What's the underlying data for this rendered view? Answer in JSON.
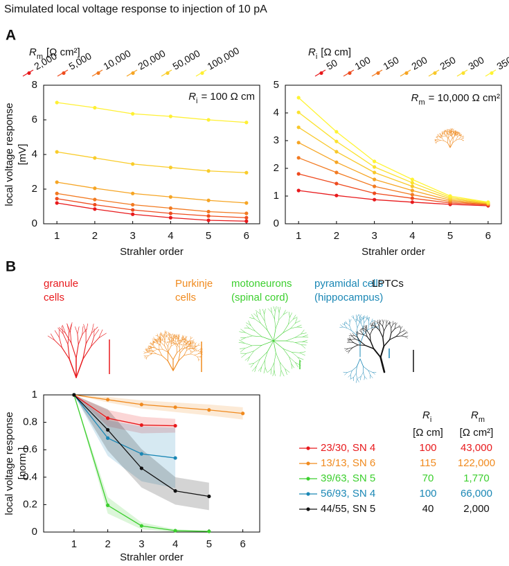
{
  "title": "Simulated local voltage response to injection of 10 pA",
  "panels": [
    "A",
    "B"
  ],
  "cell_types": [
    {
      "label": [
        "granule",
        "cells"
      ],
      "color": "#e8191c"
    },
    {
      "label": [
        "Purkinje",
        "cells"
      ],
      "color": "#f08a1e"
    },
    {
      "label": [
        "motoneurons",
        "(spinal cord)"
      ],
      "color": "#3ccf2e"
    },
    {
      "label": [
        "pyramidal cells",
        "(hippocampus)"
      ],
      "color": "#1a87b5"
    },
    {
      "label": [
        "LPTCs"
      ],
      "color": "#111111"
    }
  ],
  "chart_data": [
    {
      "type": "line",
      "x": [
        1,
        2,
        3,
        4,
        5,
        6
      ],
      "xlim": [
        0.65,
        6.35
      ],
      "xticks": [
        1,
        2,
        3,
        4,
        5,
        6
      ],
      "ylim": [
        0,
        8
      ],
      "yticks": [
        0,
        2,
        4,
        6,
        8
      ],
      "xlabel": "Strahler order",
      "ylabel": [
        "local voltage response",
        "[mV]"
      ],
      "legend_title": {
        "symbol": "R",
        "sub": "m",
        "unit": "[Ω cm²]"
      },
      "annotation": {
        "symbol": "R",
        "sub": "i",
        "text": "= 100 Ω cm"
      },
      "series": [
        {
          "name": "2,000",
          "color": "#e8191c",
          "values": [
            1.2,
            0.85,
            0.55,
            0.35,
            0.2,
            0.15
          ]
        },
        {
          "name": "5,000",
          "color": "#ee4c1e",
          "values": [
            1.45,
            1.1,
            0.8,
            0.6,
            0.45,
            0.35
          ]
        },
        {
          "name": "10,000",
          "color": "#f27a21",
          "values": [
            1.75,
            1.4,
            1.1,
            0.9,
            0.7,
            0.6
          ]
        },
        {
          "name": "20,000",
          "color": "#f6a524",
          "values": [
            2.4,
            2.05,
            1.75,
            1.55,
            1.35,
            1.2
          ]
        },
        {
          "name": "50,000",
          "color": "#f9cc2a",
          "values": [
            4.15,
            3.8,
            3.45,
            3.25,
            3.05,
            2.95
          ]
        },
        {
          "name": "100,000",
          "color": "#fff033",
          "values": [
            7.0,
            6.7,
            6.35,
            6.2,
            6.0,
            5.85
          ]
        }
      ]
    },
    {
      "type": "line",
      "x": [
        1,
        2,
        3,
        4,
        5,
        6
      ],
      "xlim": [
        0.65,
        6.35
      ],
      "xticks": [
        1,
        2,
        3,
        4,
        5,
        6
      ],
      "ylim": [
        0,
        5
      ],
      "yticks": [
        0,
        1,
        2,
        3,
        4,
        5
      ],
      "xlabel": "Strahler order",
      "legend_title": {
        "symbol": "R",
        "sub": "i",
        "unit": "[Ω cm]"
      },
      "annotation": {
        "symbol": "R",
        "sub": "m",
        "text": "= 10,000 Ω cm²"
      },
      "series": [
        {
          "name": "50",
          "color": "#e8191c",
          "values": [
            1.2,
            1.02,
            0.87,
            0.78,
            0.7,
            0.65
          ]
        },
        {
          "name": "100",
          "color": "#ee4a1e",
          "values": [
            1.8,
            1.45,
            1.1,
            0.92,
            0.75,
            0.68
          ]
        },
        {
          "name": "150",
          "color": "#f27a21",
          "values": [
            2.38,
            1.85,
            1.35,
            1.05,
            0.8,
            0.7
          ]
        },
        {
          "name": "200",
          "color": "#f6a524",
          "values": [
            2.93,
            2.22,
            1.6,
            1.2,
            0.85,
            0.72
          ]
        },
        {
          "name": "250",
          "color": "#f8c82a",
          "values": [
            3.48,
            2.6,
            1.85,
            1.35,
            0.9,
            0.74
          ]
        },
        {
          "name": "300",
          "color": "#fbe22f",
          "values": [
            4.02,
            2.97,
            2.05,
            1.48,
            0.95,
            0.76
          ]
        },
        {
          "name": "350",
          "color": "#fff433",
          "values": [
            4.55,
            3.32,
            2.25,
            1.6,
            1.0,
            0.78
          ]
        }
      ]
    },
    {
      "type": "line",
      "band": true,
      "x": [
        1,
        2,
        3,
        4,
        5,
        6
      ],
      "xlim": [
        0.1,
        6.5
      ],
      "xticks": [
        1,
        2,
        3,
        4,
        5,
        6
      ],
      "ylim": [
        0,
        1
      ],
      "yticks": [
        0,
        0.2,
        0.4,
        0.6,
        0.8,
        1
      ],
      "xlabel": "Strahler order",
      "ylabel": [
        "local voltage response",
        "[norm.]"
      ],
      "legend_columns": [
        {
          "symbol": "R",
          "sub": "i",
          "unit": "[Ω cm]"
        },
        {
          "symbol": "R",
          "sub": "m",
          "unit": "[Ω cm²]"
        }
      ],
      "series": [
        {
          "name": "23/30, SN 4",
          "color": "#e8191c",
          "values": [
            1,
            0.83,
            0.78,
            0.775,
            null,
            null
          ],
          "errors": [
            0,
            0.06,
            0.06,
            0.05,
            null,
            null
          ],
          "r_i": 100,
          "r_m": "43,000"
        },
        {
          "name": "13/13, SN 6",
          "color": "#f08a1e",
          "values": [
            1,
            0.965,
            0.93,
            0.91,
            0.89,
            0.865
          ],
          "errors": [
            0,
            0.02,
            0.03,
            0.035,
            0.04,
            0.045
          ],
          "r_i": 115,
          "r_m": "122,000"
        },
        {
          "name": "39/63, SN 5",
          "color": "#3ccf2e",
          "values": [
            1,
            0.195,
            0.045,
            0.01,
            0.005,
            null
          ],
          "errors": [
            0,
            0.06,
            0.025,
            0.01,
            0.005,
            null
          ],
          "r_i": 70,
          "r_m": "1,770"
        },
        {
          "name": "56/93, SN 4",
          "color": "#1a87b5",
          "values": [
            1,
            0.685,
            0.57,
            0.54,
            null,
            null
          ],
          "errors": [
            0,
            0.13,
            0.2,
            0.22,
            null,
            null
          ],
          "r_i": 100,
          "r_m": "66,000"
        },
        {
          "name": "44/55, SN 5",
          "color": "#111111",
          "values": [
            1,
            0.745,
            0.465,
            0.3,
            0.26,
            null
          ],
          "errors": [
            0,
            0.15,
            0.14,
            0.1,
            0.1,
            null
          ],
          "r_i": 40,
          "r_m": "2,000"
        }
      ]
    }
  ]
}
